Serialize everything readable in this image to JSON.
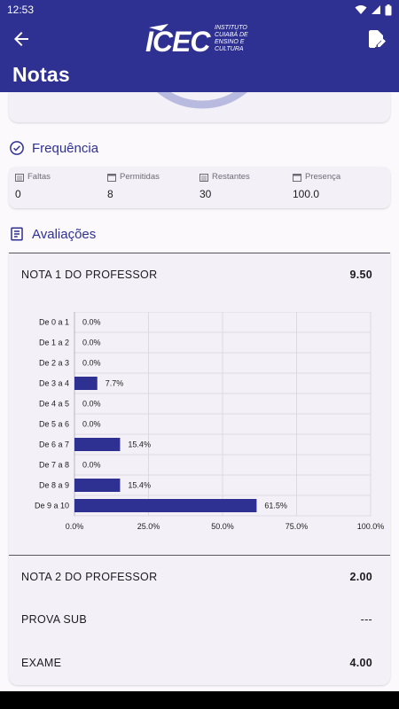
{
  "status_bar": {
    "time": "12:53"
  },
  "header": {
    "logo_text": "ICEC",
    "logo_subtitle_lines": [
      "INSTITUTO",
      "CUIABÁ DE",
      "ENSINO E",
      "CULTURA"
    ],
    "page_title": "Notas"
  },
  "frequencia": {
    "title": "Frequência",
    "items": [
      {
        "label": "Faltas",
        "value": "0"
      },
      {
        "label": "Permitidas",
        "value": "8"
      },
      {
        "label": "Restantes",
        "value": "30"
      },
      {
        "label": "Presença",
        "value": "100.0"
      }
    ]
  },
  "avaliacoes": {
    "title": "Avaliações",
    "grades": [
      {
        "label": "NOTA 1 DO PROFESSOR",
        "value": "9.50"
      },
      {
        "label": "NOTA 2 DO PROFESSOR",
        "value": "2.00"
      },
      {
        "label": "PROVA SUB",
        "value": "---"
      },
      {
        "label": "EXAME",
        "value": "4.00"
      }
    ]
  },
  "chart_data": {
    "type": "bar",
    "orientation": "horizontal",
    "categories": [
      "De 0 a 1",
      "De 1 a 2",
      "De 2 a 3",
      "De 3 a 4",
      "De 4 a 5",
      "De 5 a 6",
      "De 6 a 7",
      "De 7 a 8",
      "De 8 a 9",
      "De 9 a 10"
    ],
    "values": [
      0.0,
      0.0,
      0.0,
      7.7,
      0.0,
      0.0,
      15.4,
      0.0,
      15.4,
      61.5
    ],
    "value_labels": [
      "0.0%",
      "0.0%",
      "0.0%",
      "7.7%",
      "0.0%",
      "0.0%",
      "15.4%",
      "0.0%",
      "15.4%",
      "61.5%"
    ],
    "xlim": [
      0,
      100
    ],
    "x_ticks": [
      "0.0%",
      "25.0%",
      "50.0%",
      "75.0%",
      "100.0%"
    ],
    "grid": true,
    "bar_color": "#2e3192"
  },
  "colors": {
    "primary": "#2e3192",
    "card": "#f4f0f7",
    "background": "#fcf9fd"
  }
}
